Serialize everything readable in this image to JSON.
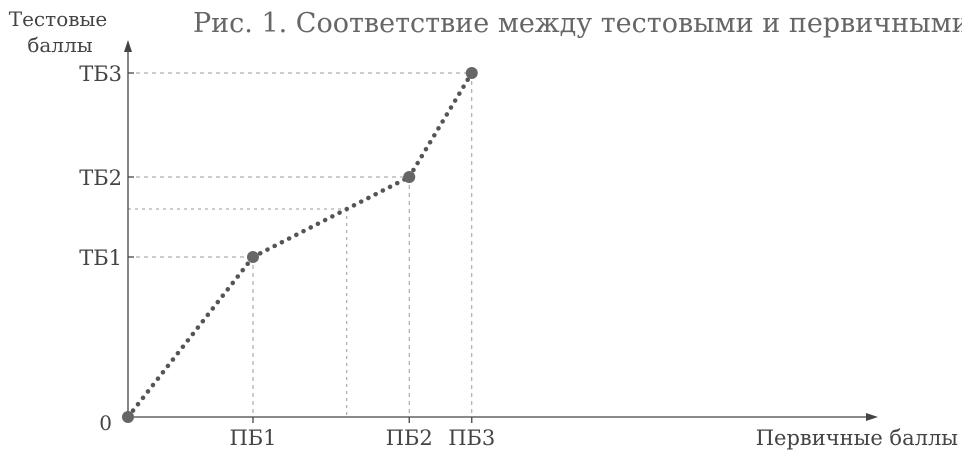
{
  "header": {
    "title": "Рис. 1. Соответствие между тестовыми и первичными"
  },
  "chart_data": {
    "type": "line",
    "title": "",
    "xlabel": "Первичные баллы",
    "ylabel_line1": "Тестовые",
    "ylabel_line2": "баллы",
    "origin_label": "0",
    "x_ticks": [
      "ПБ1",
      "ПБ2",
      "ПБ3"
    ],
    "y_ticks": [
      "ТБ1",
      "ТБ2",
      "ТБ3"
    ],
    "x_tick_values": [
      1,
      2.25,
      2.75
    ],
    "y_tick_values": [
      1,
      1.5,
      2.15
    ],
    "points": [
      {
        "x": 0,
        "y": 0
      },
      {
        "x": 1,
        "y": 1
      },
      {
        "x": 2.25,
        "y": 1.5
      },
      {
        "x": 2.75,
        "y": 2.15
      }
    ],
    "example": {
      "x": 1.75,
      "y": 1.3
    },
    "xlim": [
      0,
      3.1
    ],
    "ylim": [
      0,
      2.4
    ],
    "line_style": "dotted",
    "colors": {
      "line": "#555555",
      "point": "#666666",
      "guides": "#9a9a9a",
      "axis": "#444444"
    }
  }
}
